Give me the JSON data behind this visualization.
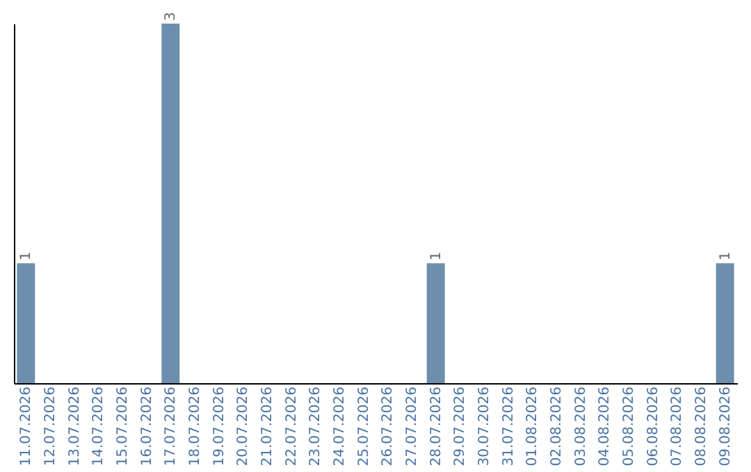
{
  "chart_data": {
    "type": "bar",
    "categories": [
      "11.07.2026",
      "12.07.2026",
      "13.07.2026",
      "14.07.2026",
      "15.07.2026",
      "16.07.2026",
      "17.07.2026",
      "18.07.2026",
      "19.07.2026",
      "20.07.2026",
      "21.07.2026",
      "22.07.2026",
      "23.07.2026",
      "24.07.2026",
      "25.07.2026",
      "26.07.2026",
      "27.07.2026",
      "28.07.2026",
      "29.07.2026",
      "30.07.2026",
      "31.07.2026",
      "01.08.2026",
      "02.08.2026",
      "03.08.2026",
      "04.08.2026",
      "05.08.2026",
      "06.08.2026",
      "07.08.2026",
      "08.08.2026",
      "09.08.2026"
    ],
    "values": [
      1,
      0,
      0,
      0,
      0,
      0,
      3,
      0,
      0,
      0,
      0,
      0,
      0,
      0,
      0,
      0,
      0,
      1,
      0,
      0,
      0,
      0,
      0,
      0,
      0,
      0,
      0,
      0,
      0,
      1
    ],
    "value_labels": [
      "1",
      null,
      null,
      null,
      null,
      null,
      "3",
      null,
      null,
      null,
      null,
      null,
      null,
      null,
      null,
      null,
      null,
      "1",
      null,
      null,
      null,
      null,
      null,
      null,
      null,
      null,
      null,
      null,
      null,
      "1"
    ],
    "color": "#6d8fad",
    "tick_labels": "x",
    "grid": false
  }
}
